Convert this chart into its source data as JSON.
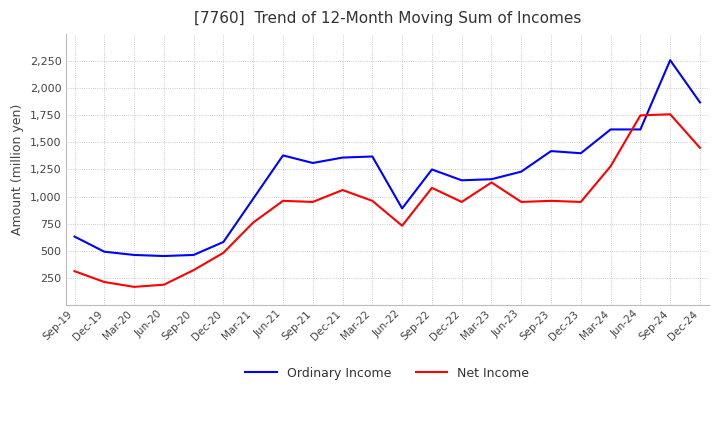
{
  "title": "[7760]  Trend of 12-Month Moving Sum of Incomes",
  "ylabel": "Amount (million yen)",
  "xlabels": [
    "Sep-19",
    "Dec-19",
    "Mar-20",
    "Jun-20",
    "Sep-20",
    "Dec-20",
    "Mar-21",
    "Jun-21",
    "Sep-21",
    "Dec-21",
    "Mar-22",
    "Jun-22",
    "Sep-22",
    "Dec-22",
    "Mar-23",
    "Jun-23",
    "Sep-23",
    "Dec-23",
    "Mar-24",
    "Jun-24",
    "Sep-24",
    "Dec-24"
  ],
  "ordinary_income": [
    630,
    490,
    460,
    450,
    460,
    580,
    980,
    1380,
    1310,
    1360,
    1370,
    890,
    1250,
    1150,
    1160,
    1230,
    1420,
    1400,
    1620,
    1620,
    2260,
    1870
  ],
  "net_income": [
    310,
    210,
    165,
    185,
    320,
    480,
    760,
    960,
    950,
    1060,
    960,
    730,
    1080,
    950,
    1130,
    950,
    960,
    950,
    1280,
    1750,
    1760,
    1450
  ],
  "ordinary_color": "#0000FF",
  "net_color": "#FF0000",
  "ylim": [
    0,
    2500
  ],
  "yticks": [
    250,
    500,
    750,
    1000,
    1250,
    1500,
    1750,
    2000,
    2250
  ],
  "grid_color": "#BBBBBB",
  "title_color": "#333333",
  "legend_entries": [
    "Ordinary Income",
    "Net Income"
  ]
}
